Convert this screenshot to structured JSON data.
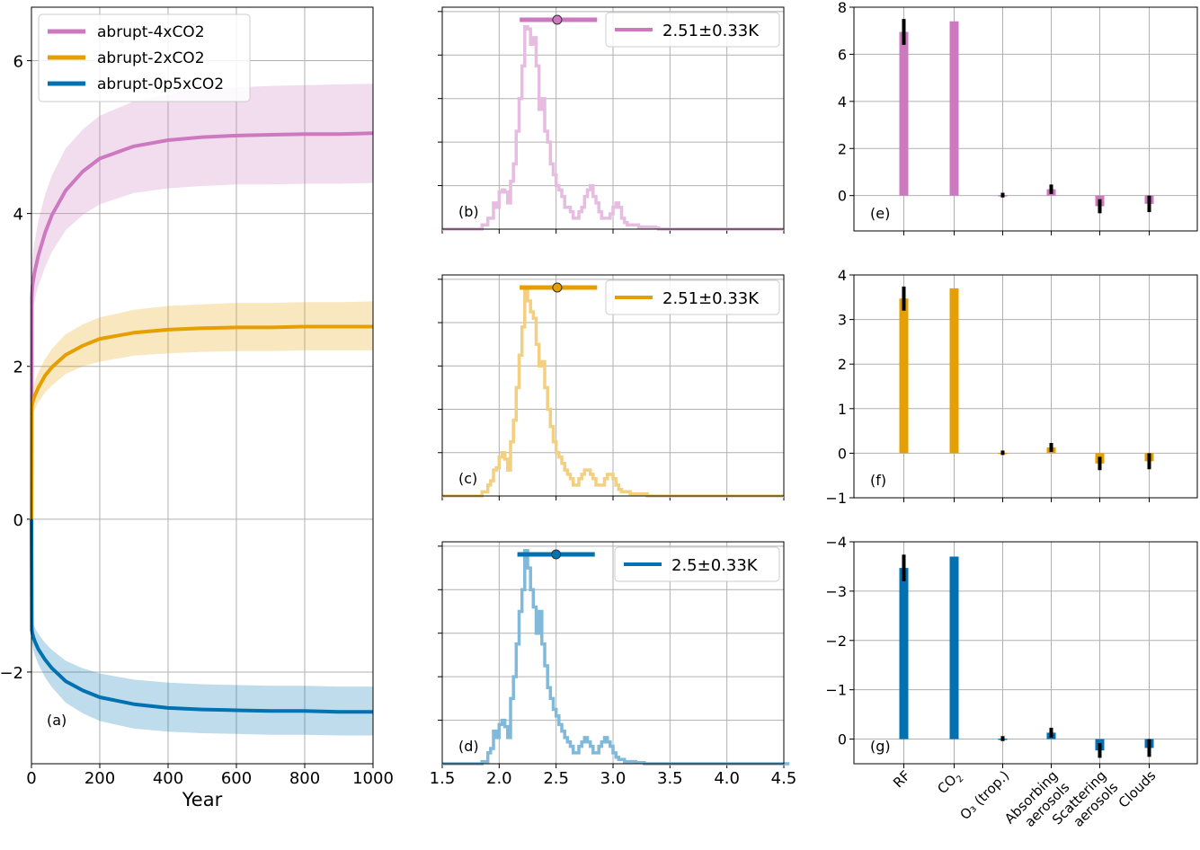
{
  "chart_data": [
    {
      "type": "line",
      "panel_label": "(a)",
      "xlabel": "Year",
      "ylabel": "",
      "xlim": [
        0,
        1000
      ],
      "ylim": [
        -3.2,
        6.7
      ],
      "xticks": [
        0,
        200,
        400,
        600,
        800,
        1000
      ],
      "yticks": [
        -2,
        0,
        2,
        4,
        6
      ],
      "grid": true,
      "legend_position": "top-left",
      "series": [
        {
          "name": "abrupt-4xCO2",
          "color": "#cc79c0",
          "x": [
            0,
            1,
            3,
            6,
            10,
            20,
            40,
            60,
            100,
            150,
            200,
            300,
            400,
            500,
            600,
            700,
            800,
            900,
            1000
          ],
          "values": [
            0,
            2.9,
            3.05,
            3.15,
            3.25,
            3.45,
            3.75,
            3.98,
            4.3,
            4.55,
            4.72,
            4.88,
            4.96,
            5.0,
            5.02,
            5.03,
            5.04,
            5.04,
            5.05
          ],
          "lower": [
            0,
            2.55,
            2.7,
            2.8,
            2.88,
            3.05,
            3.3,
            3.5,
            3.78,
            3.98,
            4.12,
            4.27,
            4.33,
            4.36,
            4.38,
            4.38,
            4.39,
            4.39,
            4.4
          ],
          "upper": [
            0,
            3.2,
            3.4,
            3.55,
            3.65,
            3.9,
            4.25,
            4.5,
            4.85,
            5.1,
            5.28,
            5.47,
            5.56,
            5.62,
            5.65,
            5.67,
            5.68,
            5.69,
            5.7
          ]
        },
        {
          "name": "abrupt-2xCO2",
          "color": "#e69f00",
          "x": [
            0,
            1,
            3,
            6,
            10,
            20,
            40,
            60,
            100,
            150,
            200,
            300,
            400,
            500,
            600,
            700,
            800,
            900,
            1000
          ],
          "values": [
            0,
            1.45,
            1.52,
            1.57,
            1.62,
            1.72,
            1.88,
            1.99,
            2.15,
            2.27,
            2.36,
            2.44,
            2.48,
            2.5,
            2.51,
            2.51,
            2.52,
            2.52,
            2.52
          ],
          "lower": [
            0,
            1.3,
            1.36,
            1.4,
            1.44,
            1.53,
            1.66,
            1.75,
            1.9,
            2.0,
            2.06,
            2.14,
            2.17,
            2.19,
            2.2,
            2.2,
            2.21,
            2.21,
            2.21
          ],
          "upper": [
            0,
            1.6,
            1.68,
            1.74,
            1.8,
            1.92,
            2.1,
            2.23,
            2.42,
            2.55,
            2.64,
            2.74,
            2.79,
            2.81,
            2.83,
            2.83,
            2.84,
            2.84,
            2.85
          ]
        },
        {
          "name": "abrupt-0p5xCO2",
          "color": "#0072b2",
          "x": [
            0,
            1,
            3,
            6,
            10,
            20,
            40,
            60,
            100,
            150,
            200,
            300,
            400,
            500,
            600,
            700,
            800,
            900,
            1000
          ],
          "values": [
            0,
            -1.45,
            -1.5,
            -1.55,
            -1.6,
            -1.7,
            -1.84,
            -1.95,
            -2.12,
            -2.24,
            -2.33,
            -2.42,
            -2.47,
            -2.49,
            -2.5,
            -2.51,
            -2.51,
            -2.52,
            -2.52
          ],
          "lower": [
            0,
            -1.6,
            -1.66,
            -1.72,
            -1.78,
            -1.9,
            -2.07,
            -2.2,
            -2.4,
            -2.54,
            -2.64,
            -2.74,
            -2.78,
            -2.8,
            -2.81,
            -2.82,
            -2.82,
            -2.83,
            -2.83
          ],
          "upper": [
            0,
            -1.3,
            -1.34,
            -1.38,
            -1.42,
            -1.5,
            -1.62,
            -1.71,
            -1.85,
            -1.95,
            -2.02,
            -2.1,
            -2.14,
            -2.16,
            -2.17,
            -2.18,
            -2.18,
            -2.19,
            -2.19
          ]
        }
      ]
    },
    {
      "type": "histogram",
      "panel_label": "(b)",
      "color": "#cc79c0",
      "legend_label": "2.51±0.33K",
      "mean": 2.51,
      "range_bar": [
        2.18,
        2.86
      ],
      "xlim": [
        1.5,
        4.5
      ],
      "ylim": [
        0,
        1.02
      ],
      "xticks": [
        1.5,
        2.0,
        2.5,
        3.0,
        3.5,
        4.0,
        4.5
      ],
      "grid": true,
      "bins": {
        "start": 1.5,
        "width": 0.025,
        "counts": [
          0,
          0,
          0,
          0,
          0,
          0,
          0,
          0,
          0,
          0,
          0,
          0,
          0,
          0,
          0.02,
          0.02,
          0.05,
          0.05,
          0.12,
          0.1,
          0.17,
          0.18,
          0.17,
          0.12,
          0.22,
          0.3,
          0.45,
          0.6,
          0.75,
          0.93,
          0.92,
          0.85,
          0.88,
          0.75,
          0.55,
          0.6,
          0.45,
          0.4,
          0.3,
          0.25,
          0.2,
          0.18,
          0.15,
          0.1,
          0.1,
          0.08,
          0.05,
          0.05,
          0.08,
          0.1,
          0.15,
          0.18,
          0.2,
          0.15,
          0.12,
          0.08,
          0.05,
          0.05,
          0.05,
          0.07,
          0.1,
          0.12,
          0.1,
          0.05,
          0.03,
          0.02,
          0.02,
          0.02,
          0.02,
          0.01,
          0.01,
          0.01,
          0.01,
          0.01,
          0.01,
          0.005,
          0,
          0,
          0,
          0,
          0,
          0,
          0,
          0,
          0,
          0,
          0,
          0,
          0,
          0,
          0,
          0,
          0,
          0,
          0,
          0,
          0,
          0,
          0,
          0,
          0,
          0,
          0,
          0,
          0,
          0,
          0,
          0,
          0,
          0,
          0,
          0,
          0,
          0,
          0,
          0,
          0,
          0,
          0,
          0
        ]
      }
    },
    {
      "type": "histogram",
      "panel_label": "(c)",
      "color": "#e69f00",
      "legend_label": "2.51±0.33K",
      "mean": 2.51,
      "range_bar": [
        2.18,
        2.86
      ],
      "xlim": [
        1.5,
        4.5
      ],
      "ylim": [
        0,
        1.02
      ],
      "xticks": [
        1.5,
        2.0,
        2.5,
        3.0,
        3.5,
        4.0,
        4.5
      ],
      "grid": true,
      "bins": {
        "start": 1.5,
        "width": 0.025,
        "counts": [
          0,
          0,
          0,
          0,
          0,
          0,
          0,
          0,
          0,
          0,
          0,
          0,
          0,
          0,
          0.02,
          0.02,
          0.05,
          0.07,
          0.12,
          0.13,
          0.18,
          0.2,
          0.17,
          0.12,
          0.25,
          0.35,
          0.5,
          0.65,
          0.78,
          0.95,
          0.9,
          0.85,
          0.82,
          0.7,
          0.6,
          0.62,
          0.5,
          0.4,
          0.32,
          0.25,
          0.2,
          0.18,
          0.15,
          0.12,
          0.1,
          0.08,
          0.05,
          0.05,
          0.08,
          0.1,
          0.12,
          0.12,
          0.1,
          0.08,
          0.05,
          0.05,
          0.05,
          0.08,
          0.1,
          0.1,
          0.08,
          0.05,
          0.03,
          0.02,
          0.02,
          0.02,
          0.01,
          0.01,
          0.01,
          0.01,
          0.01,
          0.01,
          0,
          0,
          0,
          0,
          0,
          0,
          0,
          0,
          0,
          0,
          0,
          0,
          0,
          0,
          0,
          0,
          0,
          0,
          0,
          0,
          0,
          0,
          0,
          0,
          0,
          0,
          0,
          0,
          0,
          0,
          0,
          0,
          0,
          0,
          0,
          0,
          0,
          0,
          0,
          0,
          0,
          0,
          0,
          0,
          0,
          0,
          0,
          0
        ]
      }
    },
    {
      "type": "histogram",
      "panel_label": "(d)",
      "color": "#0072b2",
      "legend_label": "2.5±0.33K",
      "mean": 2.5,
      "range_bar": [
        2.16,
        2.84
      ],
      "xlim": [
        1.5,
        4.5
      ],
      "ylim": [
        0,
        1.02
      ],
      "xticks": [
        1.5,
        2.0,
        2.5,
        3.0,
        3.5,
        4.0,
        4.5
      ],
      "xticklabels": [
        "1.5",
        "2.0",
        "2.5",
        "3.0",
        "3.5",
        "4.0",
        "4.5"
      ],
      "grid": true,
      "bins": {
        "start": 1.5,
        "width": 0.025,
        "counts": [
          0,
          0,
          0,
          0,
          0,
          0,
          0,
          0,
          0,
          0,
          0,
          0,
          0,
          0,
          0.01,
          0.01,
          0.05,
          0.07,
          0.15,
          0.12,
          0.18,
          0.2,
          0.17,
          0.12,
          0.3,
          0.4,
          0.55,
          0.7,
          0.8,
          0.98,
          0.9,
          0.8,
          0.72,
          0.6,
          0.7,
          0.55,
          0.45,
          0.35,
          0.3,
          0.25,
          0.22,
          0.18,
          0.15,
          0.12,
          0.1,
          0.08,
          0.05,
          0.05,
          0.08,
          0.1,
          0.12,
          0.1,
          0.08,
          0.05,
          0.05,
          0.08,
          0.1,
          0.12,
          0.1,
          0.08,
          0.05,
          0.03,
          0.02,
          0.02,
          0.01,
          0.01,
          0.01,
          0.01,
          0.005,
          0.005,
          0.005,
          0,
          0,
          0,
          0,
          0,
          0,
          0,
          0,
          0,
          0,
          0,
          0,
          0,
          0,
          0,
          0,
          0,
          0,
          0,
          0,
          0,
          0,
          0,
          0,
          0,
          0,
          0,
          0,
          0,
          0,
          0,
          0,
          0,
          0,
          0,
          0,
          0,
          0,
          0,
          0,
          0,
          0,
          0,
          0,
          0,
          0,
          0,
          0,
          0,
          0,
          0
        ]
      }
    },
    {
      "type": "bar",
      "panel_label": "(e)",
      "color": "#cc79c0",
      "ylim": [
        -1.5,
        8
      ],
      "yticks": [
        0,
        2,
        4,
        6,
        8
      ],
      "yticklabels": [
        "0",
        "2",
        "4",
        "6",
        "8"
      ],
      "grid": true,
      "values": [
        6.95,
        7.4,
        0.02,
        0.27,
        -0.45,
        -0.35
      ],
      "error": [
        0.55,
        0,
        0.1,
        0.2,
        0.3,
        0.35
      ]
    },
    {
      "type": "bar",
      "panel_label": "(f)",
      "color": "#e69f00",
      "ylim": [
        -1,
        4
      ],
      "yticks": [
        -1,
        0,
        1,
        2,
        3,
        4
      ],
      "yticklabels": [
        "−1",
        "0",
        "1",
        "2",
        "3",
        "4"
      ],
      "grid": true,
      "values": [
        3.47,
        3.7,
        0.01,
        0.13,
        -0.23,
        -0.18
      ],
      "error": [
        0.27,
        0,
        0.05,
        0.1,
        0.15,
        0.18
      ]
    },
    {
      "type": "bar",
      "panel_label": "(g)",
      "color": "#0072b2",
      "ylim": [
        0.5,
        -4.0
      ],
      "yticks": [
        0,
        -1,
        -2,
        -3,
        -4
      ],
      "yticklabels": [
        "0",
        "−1",
        "−2",
        "−3",
        "−4"
      ],
      "grid": true,
      "inverted_y": true,
      "values": [
        -3.47,
        -3.7,
        -0.01,
        -0.13,
        0.23,
        0.18
      ],
      "error": [
        0.27,
        0,
        0.05,
        0.1,
        0.15,
        0.18
      ],
      "categories_html": [
        {
          "main": "RF"
        },
        {
          "main": "CO",
          "sub": "2"
        },
        {
          "main": "O₃ (trop.)"
        },
        {
          "main": "Absorbing",
          "line2": "aerosols"
        },
        {
          "main": "Scattering",
          "line2": "aerosols"
        },
        {
          "main": "Clouds"
        }
      ]
    }
  ],
  "colors": {
    "pink": "#cc79c0",
    "orange": "#e69f00",
    "blue": "#0072b2",
    "grid": "#b0b0b0"
  }
}
